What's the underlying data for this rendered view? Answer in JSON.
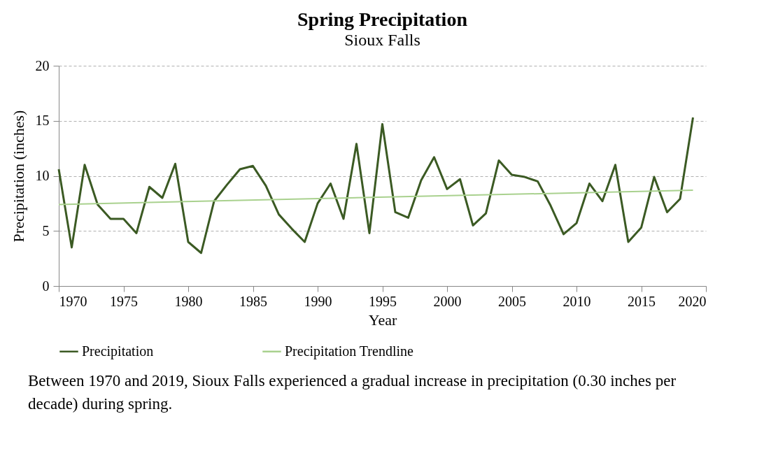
{
  "chart_data": {
    "type": "line",
    "title": "Spring Precipitation",
    "subtitle": "Sioux Falls",
    "xlabel": "Year",
    "ylabel": "Precipitation (inches)",
    "x": [
      1970,
      1971,
      1972,
      1973,
      1974,
      1975,
      1976,
      1977,
      1978,
      1979,
      1980,
      1981,
      1982,
      1983,
      1984,
      1985,
      1986,
      1987,
      1988,
      1989,
      1990,
      1991,
      1992,
      1993,
      1994,
      1995,
      1996,
      1997,
      1998,
      1999,
      2000,
      2001,
      2002,
      2003,
      2004,
      2005,
      2006,
      2007,
      2008,
      2009,
      2010,
      2011,
      2012,
      2013,
      2014,
      2015,
      2016,
      2017,
      2018,
      2019
    ],
    "series": [
      {
        "name": "Precipitation",
        "color": "#3b5a23",
        "values": [
          10.6,
          3.5,
          11.0,
          7.4,
          6.1,
          6.1,
          4.8,
          9.0,
          8.0,
          11.1,
          4.0,
          3.0,
          7.7,
          9.2,
          10.6,
          10.9,
          9.1,
          6.5,
          5.2,
          4.0,
          7.5,
          9.3,
          6.1,
          12.9,
          4.8,
          14.7,
          6.7,
          6.2,
          9.6,
          11.7,
          8.8,
          9.7,
          5.5,
          6.6,
          11.4,
          10.1,
          9.9,
          9.5,
          7.3,
          4.7,
          5.7,
          9.3,
          7.7,
          11.0,
          4.0,
          5.3,
          9.9,
          6.7,
          7.9,
          15.3
        ]
      },
      {
        "name": "Precipitation Trendline",
        "type": "line",
        "color": "#a9d18e",
        "x": [
          1970,
          2019
        ],
        "values": [
          7.4,
          8.7
        ]
      }
    ],
    "xlim": [
      1970,
      2020
    ],
    "xticks": [
      1970,
      1975,
      1980,
      1985,
      1990,
      1995,
      2000,
      2005,
      2010,
      2015,
      2020
    ],
    "ylim": [
      0,
      20
    ],
    "yticks": [
      0,
      5,
      10,
      15,
      20
    ],
    "grid": "y",
    "legend": "bottom",
    "annotations": [
      "Between 1970 and 2019, Sioux Falls experienced a gradual increase in precipitation (0.30 inches per decade) during spring."
    ]
  }
}
